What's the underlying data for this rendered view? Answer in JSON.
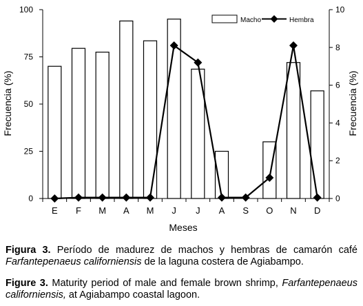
{
  "chart_data": {
    "type": "bar",
    "categories": [
      "E",
      "F",
      "M",
      "A",
      "M",
      "J",
      "J",
      "A",
      "S",
      "O",
      "N",
      "D"
    ],
    "series": [
      {
        "name": "Macho",
        "kind": "bar",
        "axis": "left",
        "values": [
          70,
          79.5,
          77.5,
          94,
          83.5,
          95,
          68.5,
          25,
          0,
          30,
          72,
          57
        ],
        "fill": "#ffffff",
        "stroke": "#000000"
      },
      {
        "name": "Hembra",
        "kind": "line",
        "axis": "right",
        "marker": "diamond",
        "values": [
          0,
          0.05,
          0.05,
          0.05,
          0.05,
          8.1,
          7.2,
          0.05,
          0.05,
          1.1,
          8.1,
          0.05
        ],
        "color": "#000000"
      }
    ],
    "xlabel": "Meses",
    "ylabel_left": "Frecuencia (%)",
    "ylabel_right": "Frecuencia (%)",
    "ylim_left": [
      0,
      100
    ],
    "yticks_left": [
      "0",
      "25",
      "50",
      "75",
      "100"
    ],
    "ylim_right": [
      0,
      10
    ],
    "yticks_right": [
      "0",
      "2",
      "4",
      "6",
      "8",
      "10"
    ],
    "legend_position": "top-right",
    "grid": false
  },
  "caption": {
    "es_label": "Figura 3.",
    "es_text": " Período de madurez de machos y hembras de camarón café ",
    "es_species": "Farfantepenaeus californiensis",
    "es_tail": " de la laguna costera de Agiabampo.",
    "en_label": "Figure 3.",
    "en_text": " Maturity period of male and female brown shrimp, ",
    "en_species": "Farfantepenaeus californiensis,",
    "en_tail": " at Agiabampo coastal lagoon."
  }
}
